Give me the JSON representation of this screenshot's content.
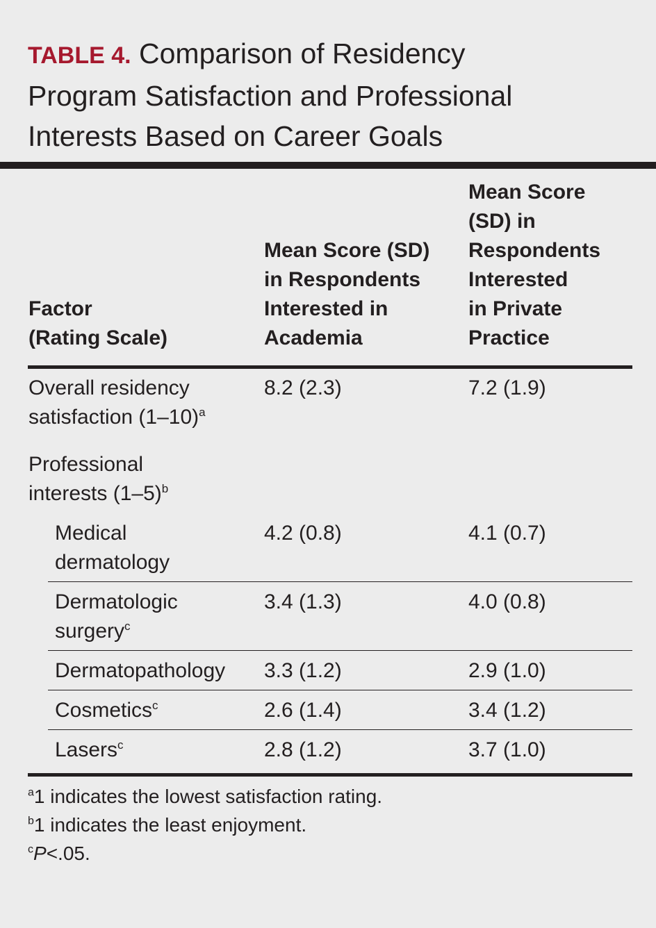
{
  "table": {
    "label": "TABLE 4.",
    "title_line1": "Comparison of Residency",
    "title_line2": "Program Satisfaction and Professional",
    "title_line3": "Interests Based on Career Goals",
    "columns": {
      "factor": [
        "Factor",
        "(Rating Scale)"
      ],
      "academia": [
        "Mean Score (SD)",
        "in Respondents",
        "Interested in",
        "Academia"
      ],
      "private": [
        "Mean Score",
        "(SD) in",
        "Respondents",
        "Interested",
        "in Private",
        "Practice"
      ]
    },
    "rows": [
      {
        "factor_line1": "Overall residency",
        "factor_line2": "satisfaction (1–10)",
        "marker": "a",
        "academia": "8.2 (2.3)",
        "private": "7.2 (1.9)"
      },
      {
        "factor_line1": "Professional",
        "factor_line2": "interests (1–5)",
        "marker": "b",
        "academia": "",
        "private": ""
      },
      {
        "factor_line1": "Medical",
        "factor_line2": "dermatology",
        "marker": "",
        "academia": "4.2 (0.8)",
        "private": "4.1 (0.7)"
      },
      {
        "factor_line1": "Dermatologic",
        "factor_line2": "surgery",
        "marker": "c",
        "academia": "3.4 (1.3)",
        "private": "4.0 (0.8)"
      },
      {
        "factor_line1": "Dermatopathology",
        "marker": "",
        "academia": "3.3 (1.2)",
        "private": "2.9 (1.0)"
      },
      {
        "factor_line1": "Cosmetics",
        "marker": "c",
        "academia": "2.6 (1.4)",
        "private": "3.4 (1.2)"
      },
      {
        "factor_line1": "Lasers",
        "marker": "c",
        "academia": "2.8 (1.2)",
        "private": "3.7 (1.0)"
      }
    ],
    "footnotes": [
      {
        "marker": "a",
        "text": "1 indicates the lowest satisfaction rating."
      },
      {
        "marker": "b",
        "text": "1 indicates the least enjoyment."
      },
      {
        "marker": "c",
        "text_italic": "P",
        "text": "<.05."
      }
    ]
  },
  "colors": {
    "label_red": "#a6192e",
    "text": "#231f20",
    "background": "#ececec"
  }
}
